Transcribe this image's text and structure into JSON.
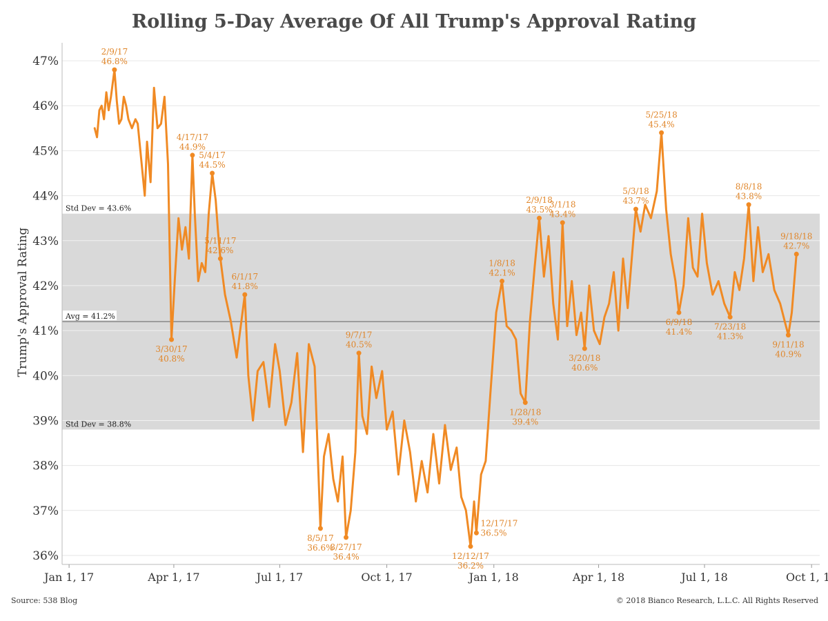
{
  "chart_data": {
    "type": "line",
    "title": "Rolling 5-Day Average Of All Trump's Approval Rating",
    "ylabel": "Trump's Approval Rating",
    "xlabel": "",
    "ylim": [
      35.8,
      47.4
    ],
    "xlim": [
      "2016-12-26",
      "2018-10-08"
    ],
    "y_ticks": [
      36,
      37,
      38,
      39,
      40,
      41,
      42,
      43,
      44,
      45,
      46,
      47
    ],
    "y_tick_labels": [
      "36%",
      "37%",
      "38%",
      "39%",
      "40%",
      "41%",
      "42%",
      "43%",
      "44%",
      "45%",
      "46%",
      "47%"
    ],
    "x_ticks": [
      "2017-01-01",
      "2017-04-01",
      "2017-07-01",
      "2017-10-01",
      "2018-01-01",
      "2018-04-01",
      "2018-07-01",
      "2018-10-01"
    ],
    "x_tick_labels": [
      "Jan 1, 17",
      "Apr 1, 17",
      "Jul 1, 17",
      "Oct 1, 17",
      "Jan 1, 18",
      "Apr 1, 18",
      "Jul 1, 18",
      "Oct 1, 18"
    ],
    "grid": true,
    "colors": {
      "line": "#f08a24",
      "band": "#d9d9d9",
      "avg_line": "#888888",
      "annotation": "#e0862a"
    },
    "band": {
      "low": 38.8,
      "high": 43.6,
      "low_label": "Std Dev = 38.8%",
      "high_label": "Std Dev = 43.6%"
    },
    "average": {
      "value": 41.2,
      "label": "Avg = 41.2%"
    },
    "series": [
      {
        "x": [
          "2017-01-23",
          "2017-01-25",
          "2017-01-27",
          "2017-01-29",
          "2017-01-31",
          "2017-02-02",
          "2017-02-04",
          "2017-02-06",
          "2017-02-09",
          "2017-02-11",
          "2017-02-13",
          "2017-02-15",
          "2017-02-17",
          "2017-02-19",
          "2017-02-21",
          "2017-02-24",
          "2017-02-27",
          "2017-03-01",
          "2017-03-04",
          "2017-03-07",
          "2017-03-09",
          "2017-03-12",
          "2017-03-15",
          "2017-03-18",
          "2017-03-21",
          "2017-03-24",
          "2017-03-27",
          "2017-03-30",
          "2017-04-02",
          "2017-04-05",
          "2017-04-08",
          "2017-04-11",
          "2017-04-14",
          "2017-04-17",
          "2017-04-19",
          "2017-04-22",
          "2017-04-25",
          "2017-04-28",
          "2017-05-01",
          "2017-05-04",
          "2017-05-07",
          "2017-05-09",
          "2017-05-11",
          "2017-05-15",
          "2017-05-20",
          "2017-05-25",
          "2017-06-01",
          "2017-06-04",
          "2017-06-08",
          "2017-06-12",
          "2017-06-17",
          "2017-06-22",
          "2017-06-27",
          "2017-07-01",
          "2017-07-06",
          "2017-07-11",
          "2017-07-16",
          "2017-07-21",
          "2017-07-26",
          "2017-07-31",
          "2017-08-05",
          "2017-08-08",
          "2017-08-12",
          "2017-08-16",
          "2017-08-20",
          "2017-08-24",
          "2017-08-27",
          "2017-08-31",
          "2017-09-04",
          "2017-09-07",
          "2017-09-10",
          "2017-09-14",
          "2017-09-18",
          "2017-09-22",
          "2017-09-27",
          "2017-10-01",
          "2017-10-06",
          "2017-10-11",
          "2017-10-16",
          "2017-10-21",
          "2017-10-26",
          "2017-10-31",
          "2017-11-05",
          "2017-11-10",
          "2017-11-15",
          "2017-11-20",
          "2017-11-25",
          "2017-11-30",
          "2017-12-04",
          "2017-12-08",
          "2017-12-12",
          "2017-12-15",
          "2017-12-17",
          "2017-12-21",
          "2017-12-25",
          "2017-12-29",
          "2018-01-03",
          "2018-01-08",
          "2018-01-12",
          "2018-01-16",
          "2018-01-20",
          "2018-01-24",
          "2018-01-28",
          "2018-02-01",
          "2018-02-05",
          "2018-02-09",
          "2018-02-13",
          "2018-02-17",
          "2018-02-21",
          "2018-02-25",
          "2018-03-01",
          "2018-03-05",
          "2018-03-09",
          "2018-03-13",
          "2018-03-17",
          "2018-03-20",
          "2018-03-24",
          "2018-03-28",
          "2018-04-02",
          "2018-04-06",
          "2018-04-10",
          "2018-04-14",
          "2018-04-18",
          "2018-04-22",
          "2018-04-26",
          "2018-05-03",
          "2018-05-07",
          "2018-05-11",
          "2018-05-16",
          "2018-05-21",
          "2018-05-25",
          "2018-05-29",
          "2018-06-02",
          "2018-06-06",
          "2018-06-09",
          "2018-06-13",
          "2018-06-17",
          "2018-06-21",
          "2018-06-25",
          "2018-06-29",
          "2018-07-03",
          "2018-07-08",
          "2018-07-13",
          "2018-07-18",
          "2018-07-23",
          "2018-07-27",
          "2018-07-31",
          "2018-08-04",
          "2018-08-08",
          "2018-08-12",
          "2018-08-16",
          "2018-08-20",
          "2018-08-25",
          "2018-08-30",
          "2018-09-04",
          "2018-09-08",
          "2018-09-11",
          "2018-09-14",
          "2018-09-18"
        ],
        "y": [
          45.5,
          45.3,
          45.9,
          46.0,
          45.7,
          46.3,
          45.9,
          46.2,
          46.8,
          46.1,
          45.6,
          45.7,
          46.2,
          46.0,
          45.7,
          45.5,
          45.7,
          45.6,
          44.8,
          44.0,
          45.2,
          44.3,
          46.4,
          45.5,
          45.6,
          46.2,
          44.7,
          40.8,
          42.2,
          43.5,
          42.8,
          43.3,
          42.6,
          44.9,
          43.6,
          42.1,
          42.5,
          42.3,
          43.6,
          44.5,
          43.9,
          43.2,
          42.6,
          41.8,
          41.2,
          40.4,
          41.8,
          40.0,
          39.0,
          40.1,
          40.3,
          39.3,
          40.7,
          40.1,
          38.9,
          39.4,
          40.5,
          38.3,
          40.7,
          40.2,
          36.6,
          38.2,
          38.7,
          37.7,
          37.2,
          38.2,
          36.4,
          37.0,
          38.3,
          40.5,
          39.1,
          38.7,
          40.2,
          39.5,
          40.1,
          38.8,
          39.2,
          37.8,
          39.0,
          38.3,
          37.2,
          38.1,
          37.4,
          38.7,
          37.6,
          38.9,
          37.9,
          38.4,
          37.3,
          37.0,
          36.2,
          37.2,
          36.5,
          37.8,
          38.1,
          39.6,
          41.4,
          42.1,
          41.1,
          41.0,
          40.8,
          39.6,
          39.4,
          41.2,
          42.4,
          43.5,
          42.2,
          43.1,
          41.6,
          40.8,
          43.4,
          41.1,
          42.1,
          40.9,
          41.4,
          40.6,
          42.0,
          41.0,
          40.7,
          41.3,
          41.6,
          42.3,
          41.0,
          42.6,
          41.5,
          43.7,
          43.2,
          43.8,
          43.5,
          44.1,
          45.4,
          43.7,
          42.7,
          42.1,
          41.4,
          42.0,
          43.5,
          42.4,
          42.2,
          43.6,
          42.5,
          41.8,
          42.1,
          41.6,
          41.3,
          42.3,
          41.9,
          42.6,
          43.8,
          42.1,
          43.3,
          42.3,
          42.7,
          41.9,
          41.6,
          41.2,
          40.9,
          41.4,
          42.7
        ]
      }
    ],
    "annotations": [
      {
        "date": "2017-02-09",
        "value": 46.8,
        "label_date": "2/9/17",
        "label_value": "46.8%",
        "pos": "above"
      },
      {
        "date": "2017-03-30",
        "value": 40.8,
        "label_date": "3/30/17",
        "label_value": "40.8%",
        "pos": "below"
      },
      {
        "date": "2017-04-17",
        "value": 44.9,
        "label_date": "4/17/17",
        "label_value": "44.9%",
        "pos": "above"
      },
      {
        "date": "2017-05-04",
        "value": 44.5,
        "label_date": "5/4/17",
        "label_value": "44.5%",
        "pos": "above"
      },
      {
        "date": "2017-05-11",
        "value": 42.6,
        "label_date": "5/11/17",
        "label_value": "42.6%",
        "pos": "above"
      },
      {
        "date": "2017-06-01",
        "value": 41.8,
        "label_date": "6/1/17",
        "label_value": "41.8%",
        "pos": "above"
      },
      {
        "date": "2017-08-05",
        "value": 36.6,
        "label_date": "8/5/17",
        "label_value": "36.6%",
        "pos": "below"
      },
      {
        "date": "2017-08-27",
        "value": 36.4,
        "label_date": "8/27/17",
        "label_value": "36.4%",
        "pos": "below"
      },
      {
        "date": "2017-09-07",
        "value": 40.5,
        "label_date": "9/7/17",
        "label_value": "40.5%",
        "pos": "above"
      },
      {
        "date": "2017-12-12",
        "value": 36.2,
        "label_date": "12/12/17",
        "label_value": "36.2%",
        "pos": "below"
      },
      {
        "date": "2017-12-17",
        "value": 36.5,
        "label_date": "12/17/17",
        "label_value": "36.5%",
        "pos": "right"
      },
      {
        "date": "2018-01-08",
        "value": 42.1,
        "label_date": "1/8/18",
        "label_value": "42.1%",
        "pos": "above"
      },
      {
        "date": "2018-01-28",
        "value": 39.4,
        "label_date": "1/28/18",
        "label_value": "39.4%",
        "pos": "below"
      },
      {
        "date": "2018-02-09",
        "value": 43.5,
        "label_date": "2/9/18",
        "label_value": "43.5%",
        "pos": "above"
      },
      {
        "date": "2018-03-01",
        "value": 43.4,
        "label_date": "3/1/18",
        "label_value": "43.4%",
        "pos": "above"
      },
      {
        "date": "2018-03-20",
        "value": 40.6,
        "label_date": "3/20/18",
        "label_value": "40.6%",
        "pos": "below"
      },
      {
        "date": "2018-05-03",
        "value": 43.7,
        "label_date": "5/3/18",
        "label_value": "43.7%",
        "pos": "above"
      },
      {
        "date": "2018-05-25",
        "value": 45.4,
        "label_date": "5/25/18",
        "label_value": "45.4%",
        "pos": "above"
      },
      {
        "date": "2018-06-09",
        "value": 41.4,
        "label_date": "6/9/18",
        "label_value": "41.4%",
        "pos": "below"
      },
      {
        "date": "2018-07-23",
        "value": 41.3,
        "label_date": "7/23/18",
        "label_value": "41.3%",
        "pos": "below"
      },
      {
        "date": "2018-08-08",
        "value": 43.8,
        "label_date": "8/8/18",
        "label_value": "43.8%",
        "pos": "above"
      },
      {
        "date": "2018-09-11",
        "value": 40.9,
        "label_date": "9/11/18",
        "label_value": "40.9%",
        "pos": "below"
      },
      {
        "date": "2018-09-18",
        "value": 42.7,
        "label_date": "9/18/18",
        "label_value": "42.7%",
        "pos": "above"
      }
    ]
  },
  "footer": {
    "source": "Source: 538 Blog",
    "copyright": "© 2018 Bianco Research, L.L.C. All Rights Reserved"
  }
}
